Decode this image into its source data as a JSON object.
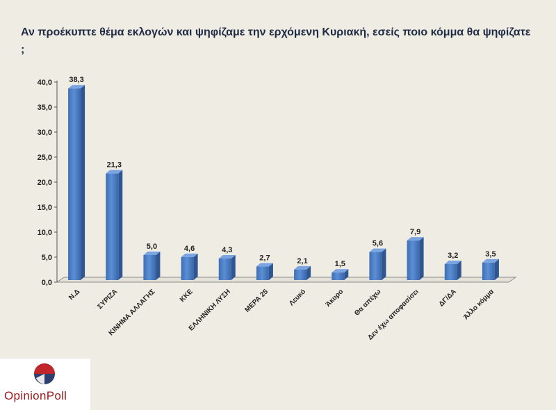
{
  "chart_data": {
    "type": "bar",
    "title": "Αν προέκυπτε θέμα εκλογών και ψηφίζαμε την ερχόμενη Κυριακή, εσείς ποιο κόμμα θα ψηφίζατε ;",
    "categories": [
      "Ν.Δ",
      "ΣΥΡΙΖΑ",
      "ΚΙΝΗΜΑ ΑΛΛΑΓΗΣ",
      "ΚΚΕ",
      "ΕΛΛΗΝΙΚΗ ΛΥΣΗ",
      "ΜΕΡΑ 25",
      "Λευκό",
      "Άκυρο",
      "Θα απέχω",
      "Δεν έχω αποφασίσει",
      "ΔΓ/ΔΑ",
      "Άλλο κόμμα"
    ],
    "values": [
      38.3,
      21.3,
      5.0,
      4.6,
      4.3,
      2.7,
      2.1,
      1.5,
      5.6,
      7.9,
      3.2,
      3.5
    ],
    "value_labels": [
      "38,3",
      "21,3",
      "5,0",
      "4,6",
      "4,3",
      "2,7",
      "2,1",
      "1,5",
      "5,6",
      "7,9",
      "3,2",
      "3,5"
    ],
    "yticks": [
      "0,0",
      "5,0",
      "10,0",
      "15,0",
      "20,0",
      "25,0",
      "30,0",
      "35,0",
      "40,0"
    ],
    "ylim": [
      0,
      40
    ],
    "xlabel": "",
    "ylabel": "",
    "grid": false,
    "bar_color": "#4f81c7"
  },
  "logo": {
    "text": "OpinionPoll"
  }
}
